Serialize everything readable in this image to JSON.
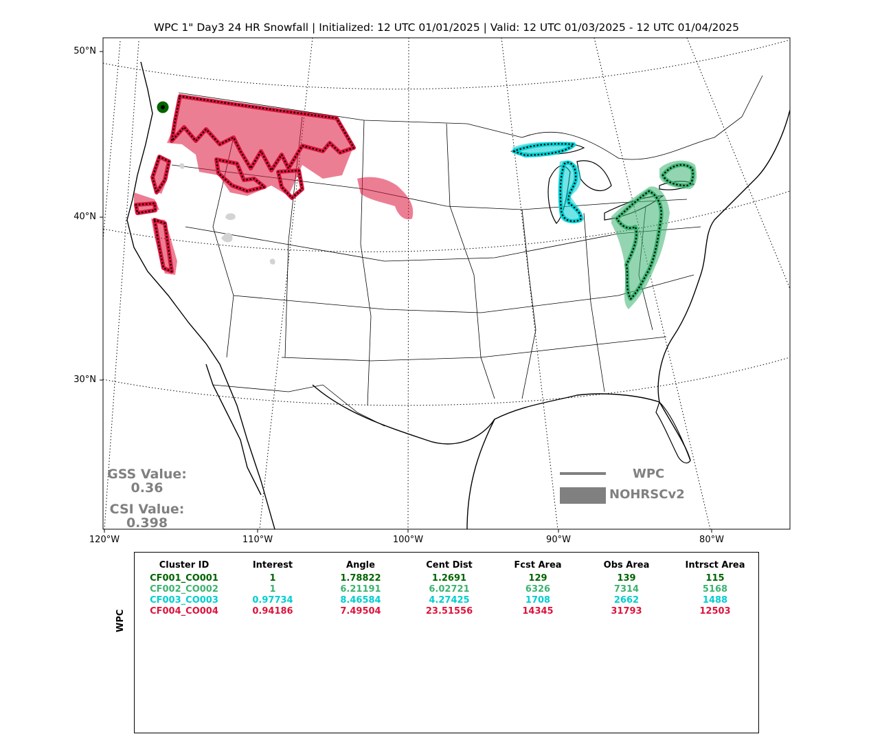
{
  "title": "WPC 1\" Day3 24 HR Snowfall | Initialized: 12 UTC 01/01/2025 | Valid: 12 UTC 01/03/2025 - 12 UTC 01/04/2025",
  "axes": {
    "lat_labels": [
      "50°N",
      "40°N",
      "30°N"
    ],
    "lon_labels": [
      "120°W",
      "110°W",
      "100°W",
      "90°W",
      "80°W"
    ]
  },
  "scores": {
    "gss_label": "GSS Value:",
    "gss_value": "0.36",
    "csi_label": "CSI Value:",
    "csi_value": "0.398"
  },
  "legend": {
    "line_label": "WPC",
    "fill_label": "NOHRSCv2",
    "color": "#808080"
  },
  "table": {
    "side_label": "WPC",
    "headers": [
      "Cluster ID",
      "Interest",
      "Angle",
      "Cent Dist",
      "Fcst Area",
      "Obs Area",
      "Intrsct Area"
    ],
    "rows": [
      {
        "color": "#006400",
        "cells": [
          "CF001_CO001",
          "1",
          "1.78822",
          "1.2691",
          "129",
          "139",
          "115"
        ]
      },
      {
        "color": "#3cb371",
        "cells": [
          "CF002_CO002",
          "1",
          "6.21191",
          "6.02721",
          "6326",
          "7314",
          "5168"
        ]
      },
      {
        "color": "#00ced1",
        "cells": [
          "CF003_CO003",
          "0.97734",
          "8.46584",
          "4.27425",
          "1708",
          "2662",
          "1488"
        ]
      },
      {
        "color": "#dc143c",
        "cells": [
          "CF004_CO004",
          "0.94186",
          "7.49504",
          "23.51556",
          "14345",
          "31793",
          "12503"
        ]
      }
    ]
  },
  "map_colors": {
    "cluster_1": "#006400",
    "cluster_2": "#3cb371",
    "cluster_3": "#00ced1",
    "cluster_4": "#dc143c",
    "unmatched_obs": "#d3d3d3"
  }
}
